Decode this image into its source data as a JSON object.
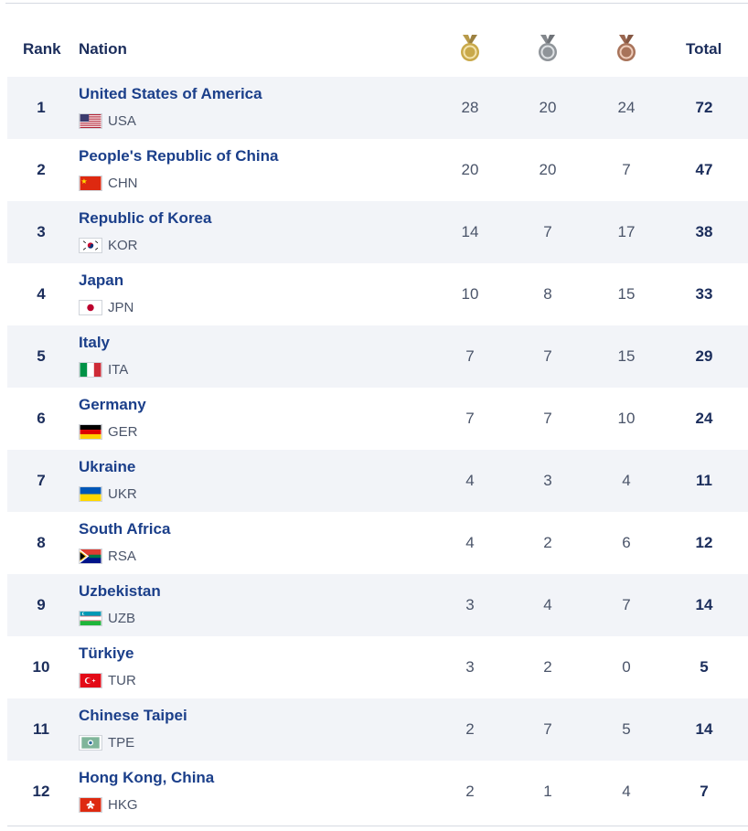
{
  "header": {
    "rank_label": "Rank",
    "nation_label": "Nation",
    "total_label": "Total",
    "medal_icons": [
      "gold-medal-icon",
      "silver-medal-icon",
      "bronze-medal-icon"
    ]
  },
  "colors": {
    "gold": "#c9a94a",
    "silver": "#8f9499",
    "bronze": "#a8735a",
    "name": "#1b3f8a",
    "row_shade": "#f2f4f8"
  },
  "rows": [
    {
      "rank": "1",
      "name": "United States of America",
      "code": "USA",
      "flag": "usa",
      "gold": "28",
      "silver": "20",
      "bronze": "24",
      "total": "72"
    },
    {
      "rank": "2",
      "name": "People's Republic of China",
      "code": "CHN",
      "flag": "chn",
      "gold": "20",
      "silver": "20",
      "bronze": "7",
      "total": "47"
    },
    {
      "rank": "3",
      "name": "Republic of Korea",
      "code": "KOR",
      "flag": "kor",
      "gold": "14",
      "silver": "7",
      "bronze": "17",
      "total": "38"
    },
    {
      "rank": "4",
      "name": "Japan",
      "code": "JPN",
      "flag": "jpn",
      "gold": "10",
      "silver": "8",
      "bronze": "15",
      "total": "33"
    },
    {
      "rank": "5",
      "name": "Italy",
      "code": "ITA",
      "flag": "ita",
      "gold": "7",
      "silver": "7",
      "bronze": "15",
      "total": "29"
    },
    {
      "rank": "6",
      "name": "Germany",
      "code": "GER",
      "flag": "ger",
      "gold": "7",
      "silver": "7",
      "bronze": "10",
      "total": "24"
    },
    {
      "rank": "7",
      "name": "Ukraine",
      "code": "UKR",
      "flag": "ukr",
      "gold": "4",
      "silver": "3",
      "bronze": "4",
      "total": "11"
    },
    {
      "rank": "8",
      "name": "South Africa",
      "code": "RSA",
      "flag": "rsa",
      "gold": "4",
      "silver": "2",
      "bronze": "6",
      "total": "12"
    },
    {
      "rank": "9",
      "name": "Uzbekistan",
      "code": "UZB",
      "flag": "uzb",
      "gold": "3",
      "silver": "4",
      "bronze": "7",
      "total": "14"
    },
    {
      "rank": "10",
      "name": "Türkiye",
      "code": "TUR",
      "flag": "tur",
      "gold": "3",
      "silver": "2",
      "bronze": "0",
      "total": "5"
    },
    {
      "rank": "11",
      "name": "Chinese Taipei",
      "code": "TPE",
      "flag": "tpe",
      "gold": "2",
      "silver": "7",
      "bronze": "5",
      "total": "14"
    },
    {
      "rank": "12",
      "name": "Hong Kong, China",
      "code": "HKG",
      "flag": "hkg",
      "gold": "2",
      "silver": "1",
      "bronze": "4",
      "total": "7"
    }
  ]
}
